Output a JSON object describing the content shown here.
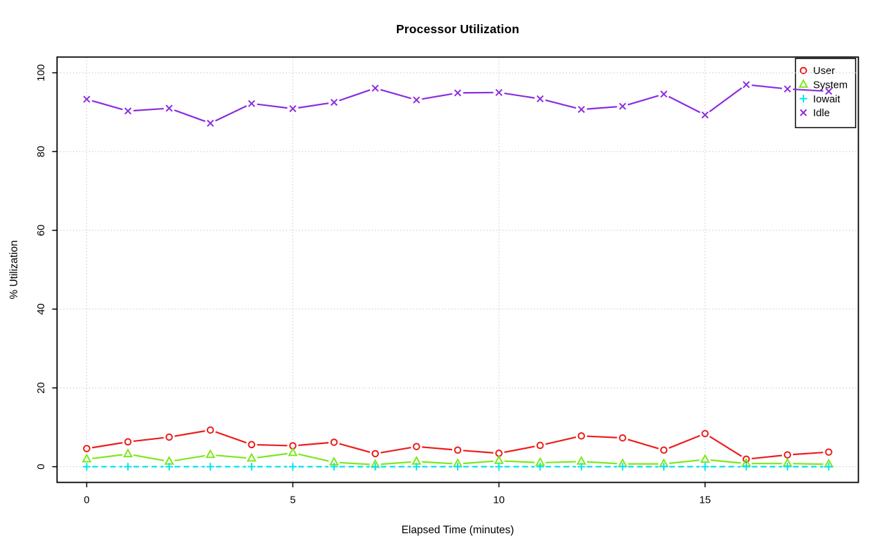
{
  "chart_data": {
    "type": "line",
    "title": "Processor Utilization",
    "xlabel": "Elapsed Time (minutes)",
    "ylabel": "% Utilization",
    "x": [
      0,
      1,
      2,
      3,
      4,
      5,
      6,
      7,
      8,
      9,
      10,
      11,
      12,
      13,
      14,
      15,
      16,
      17,
      18
    ],
    "series": [
      {
        "name": "User",
        "color": "#ee1c1c",
        "marker": "circle",
        "line": "solid",
        "values": [
          4.6,
          6.3,
          7.5,
          9.3,
          5.6,
          5.3,
          6.2,
          3.3,
          5.1,
          4.2,
          3.4,
          5.4,
          7.8,
          7.3,
          4.2,
          8.4,
          1.9,
          3.0,
          3.7
        ]
      },
      {
        "name": "System",
        "color": "#7ce81a",
        "marker": "triangle",
        "line": "solid",
        "values": [
          1.9,
          3.2,
          1.3,
          3.0,
          2.1,
          3.5,
          1.1,
          0.5,
          1.3,
          0.7,
          1.5,
          1.0,
          1.3,
          0.7,
          0.7,
          1.8,
          0.8,
          0.8,
          0.6
        ]
      },
      {
        "name": "Iowait",
        "color": "#00e5ee",
        "marker": "plus",
        "line": "dashed",
        "values": [
          0,
          0,
          0,
          0,
          0,
          0,
          0,
          0,
          0,
          0,
          0,
          0,
          0,
          0,
          0,
          0,
          0,
          0,
          0
        ]
      },
      {
        "name": "Idle",
        "color": "#8a2be2",
        "marker": "x",
        "line": "solid",
        "values": [
          93.3,
          90.3,
          91.0,
          87.2,
          92.2,
          90.9,
          92.5,
          96.1,
          93.1,
          94.9,
          95.0,
          93.4,
          90.7,
          91.5,
          94.6,
          89.3,
          97.0,
          95.9,
          95.3
        ]
      }
    ],
    "xticks": [
      0,
      5,
      10,
      15
    ],
    "yticks": [
      0,
      20,
      40,
      60,
      80,
      100
    ],
    "xlim": [
      -0.72,
      18.72
    ],
    "ylim": [
      -4,
      104
    ],
    "grid": true,
    "grid_color": "#c8c8c8",
    "axis_color": "#000000",
    "legend_position": "top-right"
  }
}
